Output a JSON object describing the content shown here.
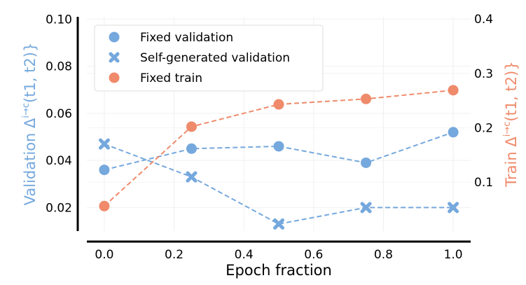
{
  "chart_data": {
    "type": "line",
    "xlabel": "Epoch fraction",
    "xlim": [
      -0.05,
      1.05
    ],
    "xticks": [
      "0.0",
      "0.2",
      "0.4",
      "0.6",
      "0.8",
      "1.0"
    ],
    "xtick_values": [
      0.0,
      0.2,
      0.4,
      0.6,
      0.8,
      1.0
    ],
    "left_axis": {
      "label_prefix": "Validation Δ",
      "label_sup": "i→c",
      "label_suffix": "(t1, t2)}",
      "color": "#75a8dd",
      "ylim": [
        0.01,
        0.101
      ],
      "ticks": [
        "0.02",
        "0.04",
        "0.06",
        "0.08",
        "0.10"
      ],
      "tick_values": [
        0.02,
        0.04,
        0.06,
        0.08,
        0.1
      ]
    },
    "right_axis": {
      "label_prefix": "Train Δ",
      "label_sup": "i→c",
      "label_suffix": "(t1, t2)}",
      "color": "#ef8a6a",
      "ylim": [
        0.01,
        0.404
      ],
      "ticks": [
        "0.1",
        "0.2",
        "0.3",
        "0.4"
      ],
      "tick_values": [
        0.1,
        0.2,
        0.3,
        0.4
      ]
    },
    "grid": true,
    "legend_placement": "top-left",
    "x": [
      0.0,
      0.25,
      0.5,
      0.75,
      1.0
    ],
    "series": [
      {
        "name": "Fixed validation",
        "axis": "left",
        "marker": "circle",
        "color": "#75a8dd",
        "linestyle": "dashed",
        "values": [
          0.036,
          0.045,
          0.046,
          0.039,
          0.052
        ]
      },
      {
        "name": "Self-generated validation",
        "axis": "left",
        "marker": "x",
        "color": "#75a8dd",
        "linestyle": "dashed",
        "values": [
          0.047,
          0.033,
          0.013,
          0.02,
          0.02
        ]
      },
      {
        "name": "Fixed train",
        "axis": "right",
        "marker": "circle",
        "color": "#ef8a6a",
        "linestyle": "dashed",
        "values": [
          0.056,
          0.202,
          0.243,
          0.253,
          0.269
        ]
      }
    ]
  }
}
